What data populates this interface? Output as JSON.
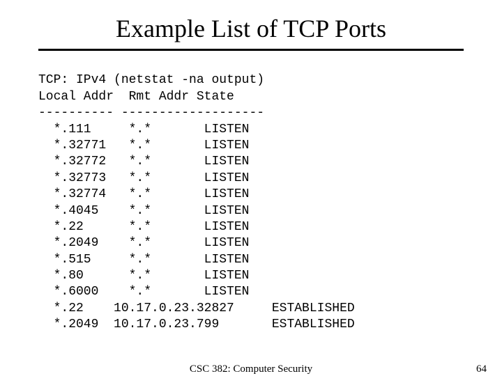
{
  "title": "Example List of TCP Ports",
  "heading_line": "TCP: IPv4 (netstat -na output)",
  "header_line": "Local Addr  Rmt Addr State",
  "separator_line": "---------- -------------------",
  "rows": [
    {
      "local": "*.111",
      "remote": "*.*",
      "state": "LISTEN"
    },
    {
      "local": "*.32771",
      "remote": "*.*",
      "state": "LISTEN"
    },
    {
      "local": "*.32772",
      "remote": "*.*",
      "state": "LISTEN"
    },
    {
      "local": "*.32773",
      "remote": "*.*",
      "state": "LISTEN"
    },
    {
      "local": "*.32774",
      "remote": "*.*",
      "state": "LISTEN"
    },
    {
      "local": "*.4045",
      "remote": "*.*",
      "state": "LISTEN"
    },
    {
      "local": "*.22",
      "remote": "*.*",
      "state": "LISTEN"
    },
    {
      "local": "*.2049",
      "remote": "*.*",
      "state": "LISTEN"
    },
    {
      "local": "*.515",
      "remote": "*.*",
      "state": "LISTEN"
    },
    {
      "local": "*.80",
      "remote": "*.*",
      "state": "LISTEN"
    },
    {
      "local": "*.6000",
      "remote": "*.*",
      "state": "LISTEN"
    },
    {
      "local": "*.22",
      "remote": "10.17.0.23.32827",
      "state": "ESTABLISHED"
    },
    {
      "local": "*.2049",
      "remote": "10.17.0.23.799",
      "state": "ESTABLISHED"
    }
  ],
  "footer": {
    "course": "CSC 382: Computer Security",
    "page": "64"
  },
  "style": {
    "title_fontsize": 36,
    "mono_fontsize": 18,
    "text_color": "#000000",
    "background_color": "#ffffff",
    "divider_color": "#000000",
    "divider_thickness": 3,
    "col_widths": {
      "local_indent": 2,
      "local": 8,
      "remote": 17,
      "state": 13
    }
  }
}
